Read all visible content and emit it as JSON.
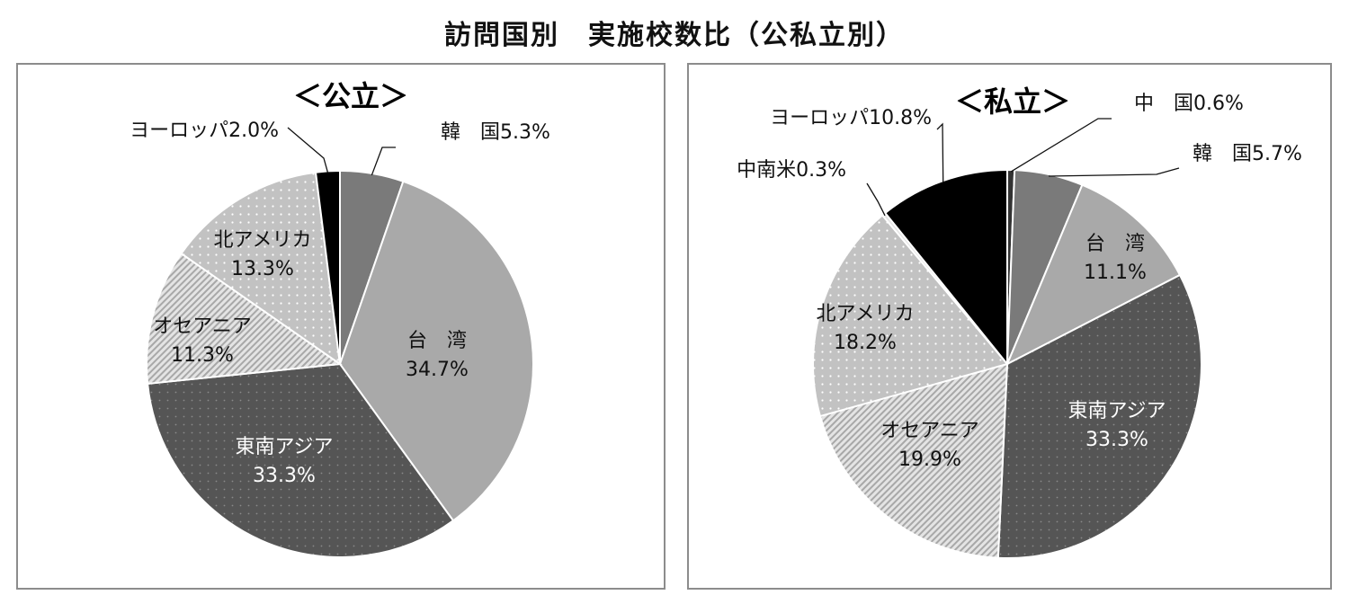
{
  "title": "訪問国別　実施校数比（公私立別）",
  "chart_data": [
    {
      "type": "pie",
      "title": "＜公立＞",
      "slices": [
        {
          "name": "韓　国",
          "value": 5.3,
          "label": "5.3%",
          "color": "#7a7a7a",
          "pattern": "solid"
        },
        {
          "name": "台　湾",
          "value": 34.7,
          "label": "34.7%",
          "color": "#a9a9a9",
          "pattern": "solid"
        },
        {
          "name": "東南アジア",
          "value": 33.3,
          "label": "33.3%",
          "color": "#555555",
          "pattern": "dots-dark"
        },
        {
          "name": "オセアニア",
          "value": 11.3,
          "label": "11.3%",
          "color": "#d8d8d8",
          "pattern": "hatch"
        },
        {
          "name": "北アメリカ",
          "value": 13.3,
          "label": "13.3%",
          "color": "#c4c4c4",
          "pattern": "dots-light"
        },
        {
          "name": "ヨーロッパ",
          "value": 2.0,
          "label": "2.0%",
          "color": "#000000",
          "pattern": "solid"
        }
      ]
    },
    {
      "type": "pie",
      "title": "＜私立＞",
      "slices": [
        {
          "name": "中　国",
          "value": 0.6,
          "label": "0.6%",
          "color": "#333333",
          "pattern": "solid"
        },
        {
          "name": "韓　国",
          "value": 5.7,
          "label": "5.7%",
          "color": "#7a7a7a",
          "pattern": "solid"
        },
        {
          "name": "台　湾",
          "value": 11.1,
          "label": "11.1%",
          "color": "#a9a9a9",
          "pattern": "solid"
        },
        {
          "name": "東南アジア",
          "value": 33.3,
          "label": "33.3%",
          "color": "#555555",
          "pattern": "dots-dark"
        },
        {
          "name": "オセアニア",
          "value": 19.9,
          "label": "19.9%",
          "color": "#d8d8d8",
          "pattern": "hatch"
        },
        {
          "name": "北アメリカ",
          "value": 18.2,
          "label": "18.2%",
          "color": "#c4c4c4",
          "pattern": "dots-light"
        },
        {
          "name": "中南米",
          "value": 0.3,
          "label": "0.3%",
          "color": "#e6e6e6",
          "pattern": "solid"
        },
        {
          "name": "ヨーロッパ",
          "value": 10.8,
          "label": "10.8%",
          "color": "#000000",
          "pattern": "solid"
        }
      ]
    }
  ]
}
